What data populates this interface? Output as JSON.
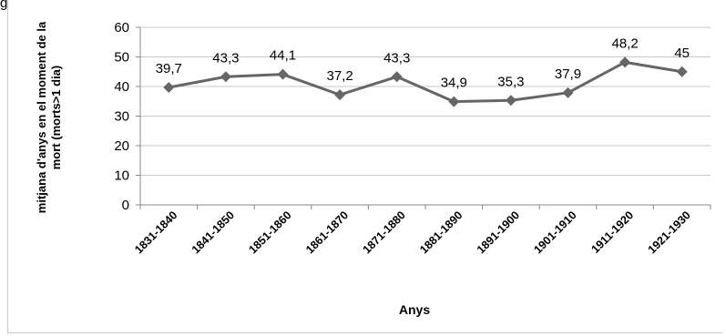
{
  "chart_data": {
    "type": "line",
    "title_fragment": "g",
    "categories": [
      "1831-1840",
      "1841-1850",
      "1851-1860",
      "1861-1870",
      "1871-1880",
      "1881-1890",
      "1891-1900",
      "1901-1910",
      "1911-1920",
      "1921-1930"
    ],
    "series": [
      {
        "values": [
          39.7,
          43.3,
          44.1,
          37.2,
          43.3,
          34.9,
          35.3,
          37.9,
          48.2,
          45
        ],
        "labels": [
          "39,7",
          "43,3",
          "44,1",
          "37,2",
          "43,3",
          "34,9",
          "35,3",
          "37,9",
          "48,2",
          "45"
        ]
      }
    ],
    "xlabel": "Anys",
    "ylabel_lines": [
      "mitjana d'anys en el moment de la",
      "mort (morts>1 dia)"
    ],
    "ylim": [
      0,
      60
    ],
    "yticks": [
      "0",
      "10",
      "20",
      "30",
      "40",
      "50",
      "60"
    ],
    "grid": true,
    "line_color": "#666666",
    "grid_color": "#c8c8c8"
  }
}
